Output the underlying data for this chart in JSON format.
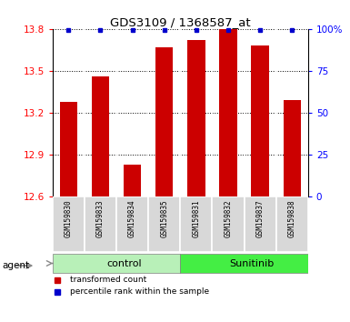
{
  "title": "GDS3109 / 1368587_at",
  "samples": [
    "GSM159830",
    "GSM159833",
    "GSM159834",
    "GSM159835",
    "GSM159831",
    "GSM159832",
    "GSM159837",
    "GSM159838"
  ],
  "red_values": [
    13.28,
    13.46,
    12.83,
    13.67,
    13.72,
    13.81,
    13.68,
    13.29
  ],
  "blue_y_positions": [
    13.795,
    13.795,
    13.795,
    13.795,
    13.795,
    13.795,
    13.795,
    13.795
  ],
  "ylim": [
    12.6,
    13.8
  ],
  "y_ticks": [
    12.6,
    12.9,
    13.2,
    13.5,
    13.8
  ],
  "right_y_ticks": [
    0,
    25,
    50,
    75,
    100
  ],
  "right_y_labels": [
    "0",
    "25",
    "50",
    "75",
    "100%"
  ],
  "bar_color": "#cc0000",
  "blue_color": "#0000cc",
  "ylabel_color": "red",
  "right_ylabel_color": "blue",
  "plot_bg": "#ffffff",
  "sample_box_bg": "#d8d8d8",
  "group_control_color": "#b8f0b8",
  "group_sunitinib_color": "#44ee44",
  "n_control": 4,
  "n_sunitinib": 4,
  "group_labels": [
    "control",
    "Sunitinib"
  ],
  "agent_label": "agent",
  "legend_labels": [
    "transformed count",
    "percentile rank within the sample"
  ]
}
